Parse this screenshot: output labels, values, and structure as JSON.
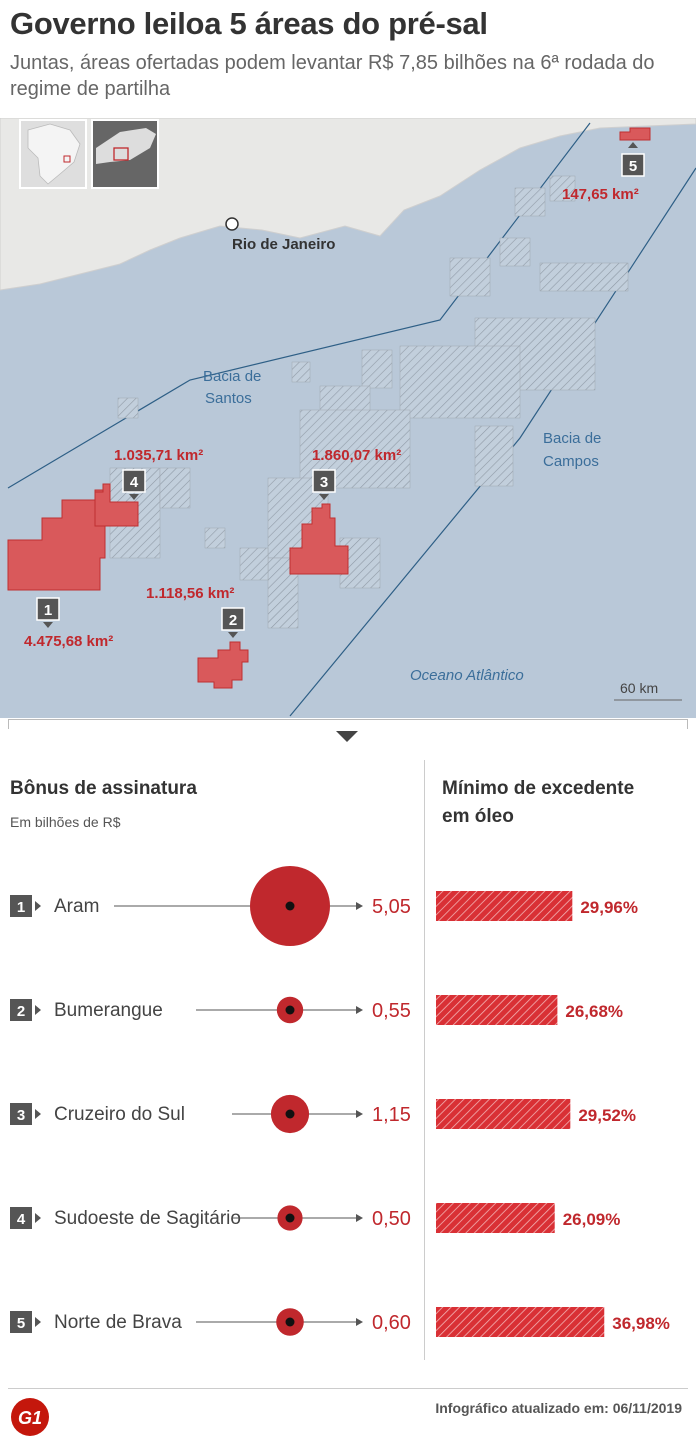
{
  "header": {
    "title": "Governo leiloa 5 áreas do pré-sal",
    "subtitle": "Juntas, áreas ofertadas podem levantar R$ 7,85 bilhões na 6ª rodada do regime de partilha"
  },
  "map": {
    "city_label": "Rio de Janeiro",
    "basins": {
      "santos": [
        "Bacia de",
        "Santos"
      ],
      "campos": [
        "Bacia de",
        "Campos"
      ]
    },
    "ocean_label": "Oceano Atlântico",
    "scale_label": "60 km",
    "areas": [
      {
        "number": "1",
        "area": "4.475,68 km²"
      },
      {
        "number": "2",
        "area": "1.118,56 km²"
      },
      {
        "number": "3",
        "area": "1.860,07 km²"
      },
      {
        "number": "4",
        "area": "1.035,71 km²"
      },
      {
        "number": "5",
        "area": "147,65 km²"
      }
    ],
    "colors": {
      "sea": "#b9c8d8",
      "land": "#e8e8e6",
      "area": "#d9595b",
      "area_stroke": "#c03030",
      "label": "#c0282d",
      "basin_label": "#3b6e9a"
    }
  },
  "bonus": {
    "title": "Bônus de assinatura",
    "subtitle": "Em bilhões de R$"
  },
  "excedente": {
    "title_line1": "Mínimo de excedente",
    "title_line2": "em óleo"
  },
  "chart_data": [
    {
      "type": "scatter",
      "title": "Bônus de assinatura",
      "subtitle": "Em bilhões de R$",
      "categories": [
        "Aram",
        "Bumerangue",
        "Cruzeiro do Sul",
        "Sudoeste de Sagitário",
        "Norte de Brava"
      ],
      "numbers": [
        "1",
        "2",
        "3",
        "4",
        "5"
      ],
      "values": [
        5.05,
        0.55,
        1.15,
        0.5,
        0.6
      ],
      "labels": [
        "5,05",
        "0,55",
        "1,15",
        "0,50",
        "0,60"
      ],
      "color": "#c0282d"
    },
    {
      "type": "bar",
      "title": "Mínimo de excedente em óleo",
      "categories": [
        "Aram",
        "Bumerangue",
        "Cruzeiro do Sul",
        "Sudoeste de Sagitário",
        "Norte de Brava"
      ],
      "values": [
        29.96,
        26.68,
        29.52,
        26.09,
        36.98
      ],
      "labels": [
        "29,96%",
        "26,68%",
        "29,52%",
        "26,09%",
        "36,98%"
      ],
      "color": "#d93035"
    }
  ],
  "footer": {
    "logo": "G1",
    "updated": "Infográfico atualizado em: 06/11/2019"
  }
}
